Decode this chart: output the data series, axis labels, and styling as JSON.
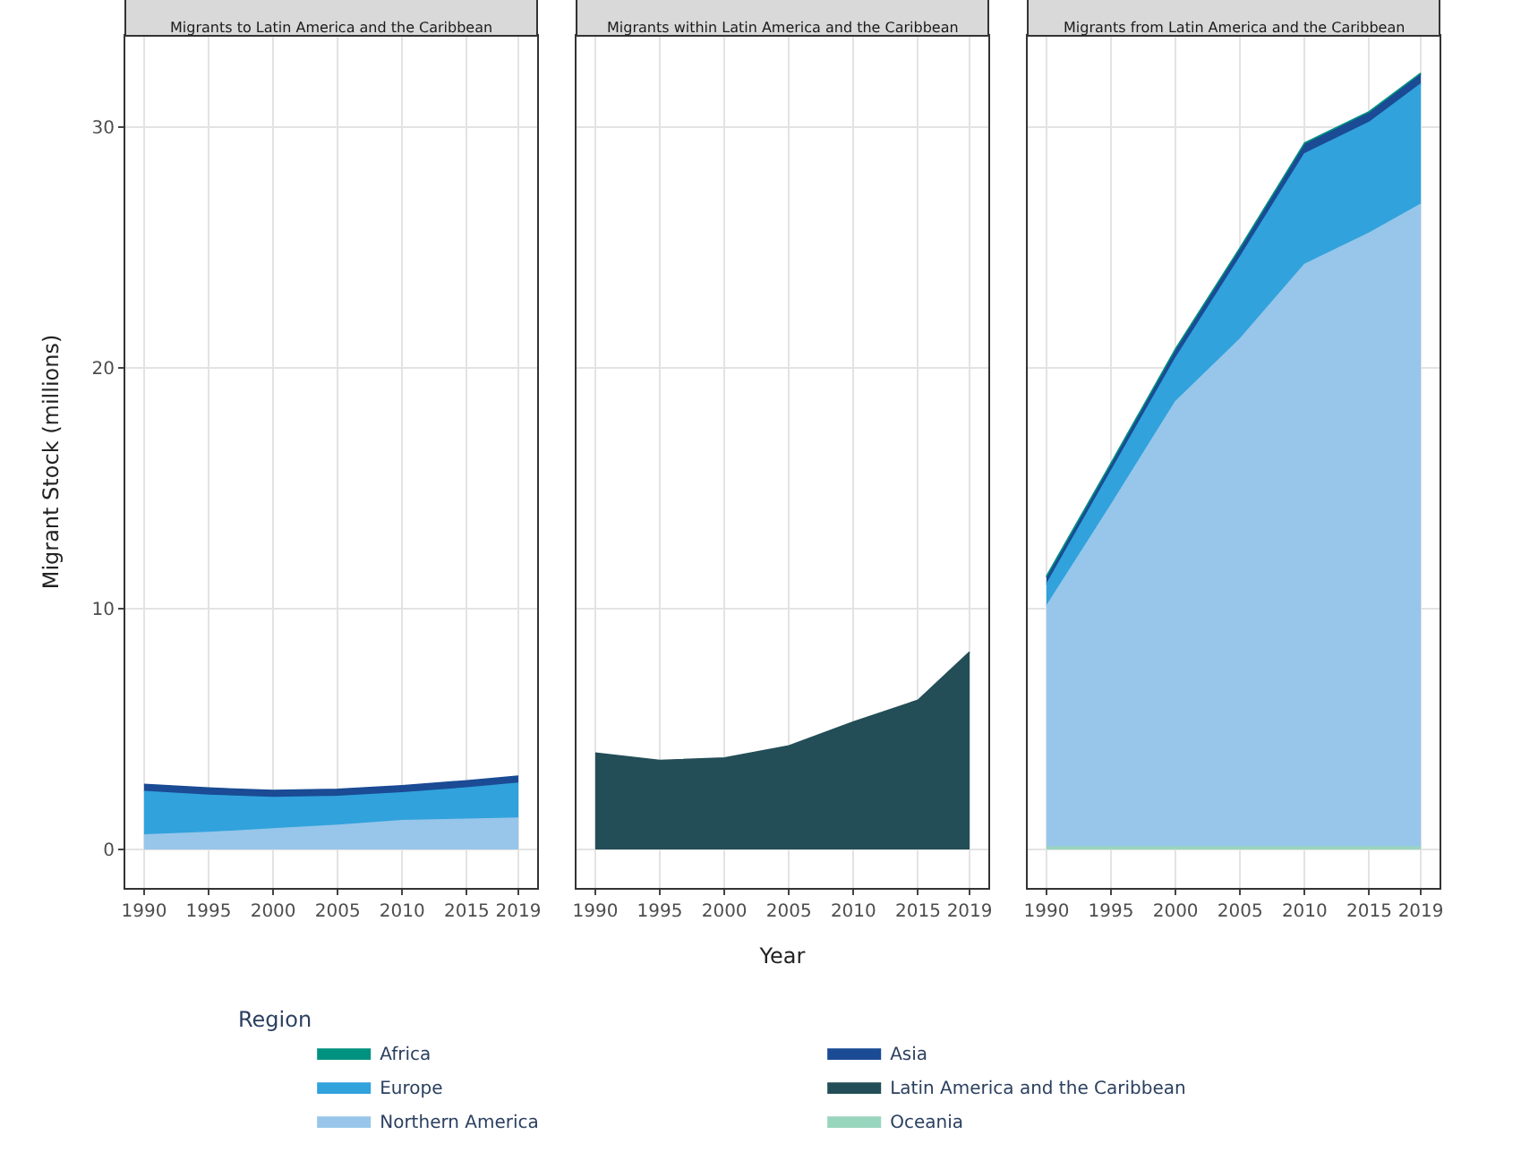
{
  "chart_data": [
    {
      "type": "area",
      "stacked": true,
      "title": "Migrants to Latin America and the Caribbean",
      "ylabel": "Migrant Stock (millions)",
      "x": [
        1990,
        1995,
        2000,
        2005,
        2010,
        2015,
        2019
      ],
      "xlim": [
        1988.55,
        2020.45
      ],
      "xticks": [
        1990,
        1995,
        2000,
        2005,
        2010,
        2015,
        2019
      ],
      "ylim": [
        -1.6,
        33.8
      ],
      "yticks": [
        0,
        10,
        20,
        30
      ],
      "grid": true,
      "legend": "bottom",
      "legend_title": "Region",
      "series": [
        {
          "name": "Northern America",
          "color": "#97c6ea",
          "values": [
            0.6,
            0.7,
            0.85,
            1.0,
            1.2,
            1.25,
            1.3
          ]
        },
        {
          "name": "Europe",
          "color": "#31a2dc",
          "values": [
            1.8,
            1.55,
            1.3,
            1.2,
            1.15,
            1.3,
            1.45
          ]
        },
        {
          "name": "Asia",
          "color": "#1a4b94",
          "values": [
            0.3,
            0.3,
            0.3,
            0.3,
            0.3,
            0.3,
            0.3
          ]
        }
      ]
    },
    {
      "type": "area",
      "stacked": true,
      "title": "Migrants within Latin America and the Caribbean",
      "xlabel": "Year",
      "x": [
        1990,
        1995,
        2000,
        2005,
        2010,
        2015,
        2019
      ],
      "xlim": [
        1988.55,
        2020.45
      ],
      "xticks": [
        1990,
        1995,
        2000,
        2005,
        2010,
        2015,
        2019
      ],
      "ylim": [
        -1.6,
        33.8
      ],
      "yticks": [
        0,
        10,
        20,
        30
      ],
      "grid": true,
      "tick_labels": "x",
      "legend": "bottom",
      "series": [
        {
          "name": "Latin America and the Caribbean",
          "color": "#234e57",
          "values": [
            4.0,
            3.7,
            3.8,
            4.3,
            5.3,
            6.2,
            8.2
          ]
        }
      ]
    },
    {
      "type": "area",
      "stacked": true,
      "title": "Migrants from Latin America and the Caribbean",
      "x": [
        1990,
        1995,
        2000,
        2005,
        2010,
        2015,
        2019
      ],
      "xlim": [
        1988.55,
        2020.45
      ],
      "xticks": [
        1990,
        1995,
        2000,
        2005,
        2010,
        2015,
        2019
      ],
      "ylim": [
        -1.6,
        33.8
      ],
      "yticks": [
        0,
        10,
        20,
        30
      ],
      "grid": true,
      "tick_labels": "x",
      "legend": "bottom",
      "series": [
        {
          "name": "Oceania",
          "color": "#98d5bd",
          "values": [
            0.1,
            0.1,
            0.1,
            0.1,
            0.1,
            0.1,
            0.1
          ]
        },
        {
          "name": "Northern America",
          "color": "#97c6ea",
          "values": [
            10.0,
            14.2,
            18.5,
            21.1,
            24.2,
            25.5,
            26.7
          ]
        },
        {
          "name": "Europe",
          "color": "#31a2dc",
          "values": [
            0.9,
            1.4,
            1.8,
            3.4,
            4.6,
            4.6,
            5.0
          ]
        },
        {
          "name": "Asia",
          "color": "#1a4b94",
          "values": [
            0.3,
            0.3,
            0.35,
            0.35,
            0.4,
            0.4,
            0.4
          ]
        },
        {
          "name": "Africa",
          "color": "#009281",
          "values": [
            0.05,
            0.05,
            0.05,
            0.05,
            0.05,
            0.05,
            0.05
          ]
        }
      ]
    }
  ]
}
